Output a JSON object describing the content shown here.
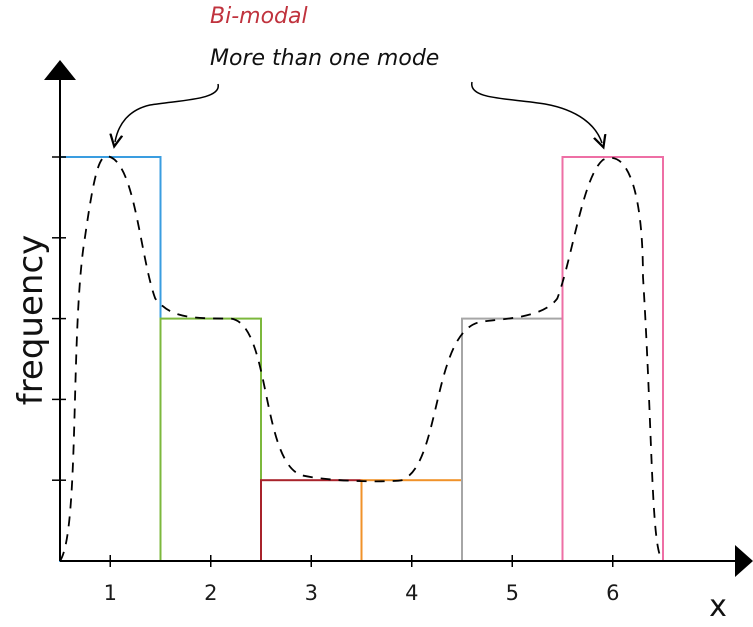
{
  "chart_data": {
    "type": "bar",
    "categories": [
      "1",
      "2",
      "3",
      "4",
      "5",
      "6"
    ],
    "values": [
      5,
      3,
      1,
      1,
      3,
      5
    ],
    "xlabel": "x",
    "ylabel": "frequency",
    "ylim": [
      0,
      5
    ],
    "grid": false,
    "bar_colors": [
      "#3a9de0",
      "#7cb83c",
      "#a8232b",
      "#f0922a",
      "#a6a6a6",
      "#ee6fa5"
    ],
    "overlay_curve": {
      "style": "dashed",
      "shape": "bimodal"
    },
    "annotations": {
      "title": "Bi-modal",
      "text": "More than one mode",
      "title_color": "#c0333e"
    }
  }
}
